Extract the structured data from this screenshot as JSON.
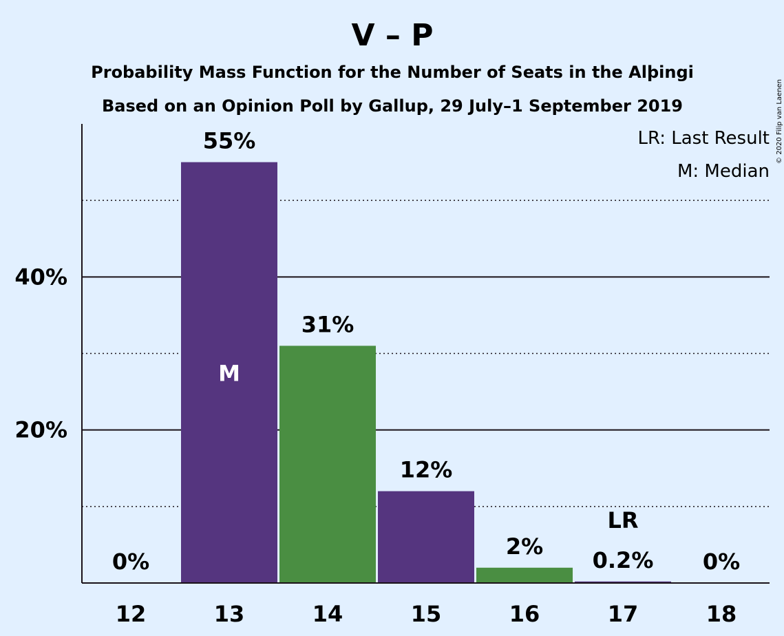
{
  "header": {
    "title": "V – P",
    "subtitle_1": "Probability Mass Function for the Number of Seats in the Alþingi",
    "subtitle_2": "Based on an Opinion Poll by Gallup, 29 July–1 September 2019"
  },
  "legend": {
    "last_result": "LR: Last Result",
    "median": "M: Median"
  },
  "copyright": "© 2020 Filip van Laenen",
  "chart_data": {
    "type": "bar",
    "categories": [
      "12",
      "13",
      "14",
      "15",
      "16",
      "17",
      "18"
    ],
    "values": [
      0,
      55,
      31,
      12,
      2,
      0.2,
      0
    ],
    "value_labels": [
      "0%",
      "55%",
      "31%",
      "12%",
      "2%",
      "0.2%",
      "0%"
    ],
    "bar_colors": [
      "#55357f",
      "#55357f",
      "#4a8e42",
      "#55357f",
      "#4a8e42",
      "#55357f",
      "#4a8e42"
    ],
    "bar_markers": [
      "",
      "M",
      "",
      "",
      "",
      "",
      ""
    ],
    "above_markers": [
      "",
      "",
      "",
      "",
      "",
      "LR",
      ""
    ],
    "ylim": [
      0,
      60
    ],
    "y_ticks": [
      20,
      40
    ],
    "y_tick_labels": [
      "20%",
      "40%"
    ],
    "dotted_gridlines": [
      10,
      30,
      50
    ],
    "legend_position": "top-right"
  }
}
